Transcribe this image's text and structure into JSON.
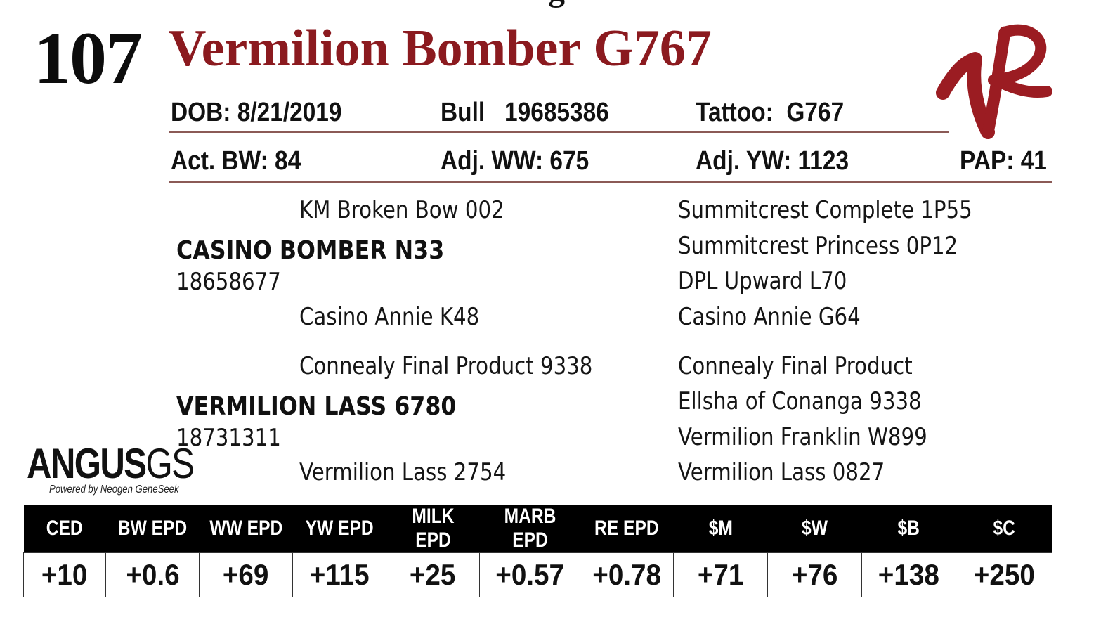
{
  "lot_number": "107",
  "animal_name": "Vermilion Bomber G767",
  "top_clipped_text": "g",
  "info": {
    "dob": "DOB: 8/21/2019",
    "sex_reg": "Bull   19685386",
    "tattoo": "Tattoo:  G767",
    "act_bw": "Act. BW: 84",
    "adj_ww": "Adj. WW: 675",
    "adj_yw": "Adj. YW: 1123",
    "pap": "PAP: 41"
  },
  "pedigree": {
    "sire": {
      "name": "CASINO BOMBER N33",
      "reg": "18658677"
    },
    "sire_sire": "KM Broken Bow 002",
    "sire_dam": "Casino Annie K48",
    "sire_sire_sire": "Summitcrest Complete 1P55",
    "sire_sire_dam": "Summitcrest Princess 0P12",
    "sire_dam_sire": "DPL Upward L70",
    "sire_dam_dam": "Casino Annie G64",
    "dam": {
      "name": "VERMILION LASS 6780",
      "reg": "18731311"
    },
    "dam_sire": "Connealy Final Product 9338",
    "dam_dam": "Vermilion Lass 2754",
    "dam_sire_sire": "Connealy Final Product",
    "dam_sire_dam": "Ellsha of Conanga 9338",
    "dam_dam_sire": "Vermilion Franklin W899",
    "dam_dam_dam": "Vermilion Lass 0827"
  },
  "badge": {
    "main": "ANGUS",
    "suffix": "GS",
    "sub": "Powered by Neogen GeneSeek"
  },
  "epd_table": {
    "headers": [
      "CED",
      "BW EPD",
      "WW EPD",
      "YW EPD",
      "MILK EPD",
      "MARB EPD",
      "RE EPD",
      "$M",
      "$W",
      "$B",
      "$C"
    ],
    "values": [
      "+10",
      "+0.6",
      "+69",
      "+115",
      "+25",
      "+0.57",
      "+0.78",
      "+71",
      "+76",
      "+138",
      "+250"
    ]
  },
  "colors": {
    "title_red": "#8b1a1f",
    "brand_logo": "#9b1c22",
    "rule": "#8b5a56",
    "header_bg": "#000000"
  },
  "icons": {
    "brand_logo": "vr-brand-logo-icon"
  }
}
